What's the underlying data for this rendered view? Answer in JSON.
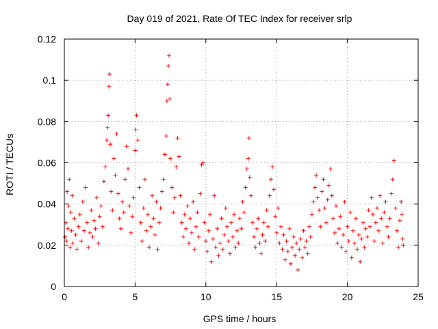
{
  "chart_data": {
    "type": "scatter",
    "title": "Day 019 of 2021, Rate Of TEC Index for receiver srlp",
    "xlabel": "GPS time / hours",
    "ylabel": "ROTI / TECUs",
    "xlim": [
      0,
      25
    ],
    "ylim": [
      0,
      0.12
    ],
    "x_ticks": [
      0,
      5,
      10,
      15,
      20,
      25
    ],
    "x_tick_labels": [
      "0",
      "5",
      "10",
      "15",
      "20",
      "25"
    ],
    "y_ticks": [
      0,
      0.02,
      0.04,
      0.06,
      0.08,
      0.1,
      0.12
    ],
    "y_tick_labels": [
      "0",
      "0.02",
      "0.04",
      "0.06",
      "0.08",
      "0.1",
      "0.12"
    ],
    "grid": true,
    "marker": "+",
    "series_color": "#ff0000",
    "series": [
      {
        "name": "ROTI",
        "points": [
          [
            0.05,
            0.024
          ],
          [
            0.1,
            0.031
          ],
          [
            0.15,
            0.022
          ],
          [
            0.2,
            0.046
          ],
          [
            0.25,
            0.028
          ],
          [
            0.3,
            0.039
          ],
          [
            0.35,
            0.052
          ],
          [
            0.4,
            0.019
          ],
          [
            0.45,
            0.036
          ],
          [
            0.5,
            0.027
          ],
          [
            0.55,
            0.044
          ],
          [
            0.6,
            0.021
          ],
          [
            0.7,
            0.033
          ],
          [
            0.8,
            0.025
          ],
          [
            0.9,
            0.018
          ],
          [
            1.0,
            0.029
          ],
          [
            1.1,
            0.035
          ],
          [
            1.2,
            0.022
          ],
          [
            1.3,
            0.041
          ],
          [
            1.4,
            0.027
          ],
          [
            1.5,
            0.048
          ],
          [
            1.6,
            0.031
          ],
          [
            1.7,
            0.019
          ],
          [
            1.8,
            0.026
          ],
          [
            1.9,
            0.037
          ],
          [
            2.0,
            0.024
          ],
          [
            2.1,
            0.032
          ],
          [
            2.2,
            0.028
          ],
          [
            2.3,
            0.043
          ],
          [
            2.4,
            0.021
          ],
          [
            2.5,
            0.034
          ],
          [
            2.6,
            0.039
          ],
          [
            2.7,
            0.029
          ],
          [
            2.8,
            0.051
          ],
          [
            2.9,
            0.058
          ],
          [
            3.0,
            0.071
          ],
          [
            3.05,
            0.077
          ],
          [
            3.1,
            0.083
          ],
          [
            3.15,
            0.097
          ],
          [
            3.2,
            0.103
          ],
          [
            3.25,
            0.069
          ],
          [
            3.3,
            0.046
          ],
          [
            3.4,
            0.037
          ],
          [
            3.5,
            0.062
          ],
          [
            3.6,
            0.054
          ],
          [
            3.7,
            0.074
          ],
          [
            3.8,
            0.045
          ],
          [
            3.9,
            0.033
          ],
          [
            4.0,
            0.028
          ],
          [
            4.1,
            0.041
          ],
          [
            4.2,
            0.036
          ],
          [
            4.3,
            0.052
          ],
          [
            4.4,
            0.068
          ],
          [
            4.5,
            0.057
          ],
          [
            4.6,
            0.039
          ],
          [
            4.7,
            0.026
          ],
          [
            4.8,
            0.034
          ],
          [
            4.9,
            0.043
          ],
          [
            5.0,
            0.066
          ],
          [
            5.05,
            0.076
          ],
          [
            5.1,
            0.083
          ],
          [
            5.2,
            0.071
          ],
          [
            5.3,
            0.048
          ],
          [
            5.4,
            0.031
          ],
          [
            5.5,
            0.022
          ],
          [
            5.6,
            0.038
          ],
          [
            5.7,
            0.052
          ],
          [
            5.8,
            0.027
          ],
          [
            5.9,
            0.035
          ],
          [
            6.0,
            0.019
          ],
          [
            6.1,
            0.029
          ],
          [
            6.2,
            0.044
          ],
          [
            6.3,
            0.033
          ],
          [
            6.4,
            0.025
          ],
          [
            6.5,
            0.041
          ],
          [
            6.6,
            0.018
          ],
          [
            6.7,
            0.031
          ],
          [
            6.8,
            0.038
          ],
          [
            6.9,
            0.046
          ],
          [
            7.0,
            0.052
          ],
          [
            7.1,
            0.064
          ],
          [
            7.2,
            0.073
          ],
          [
            7.25,
            0.09
          ],
          [
            7.3,
            0.098
          ],
          [
            7.35,
            0.107
          ],
          [
            7.4,
            0.112
          ],
          [
            7.45,
            0.091
          ],
          [
            7.5,
            0.062
          ],
          [
            7.6,
            0.048
          ],
          [
            7.7,
            0.036
          ],
          [
            7.8,
            0.043
          ],
          [
            7.9,
            0.058
          ],
          [
            8.0,
            0.072
          ],
          [
            8.1,
            0.063
          ],
          [
            8.2,
            0.044
          ],
          [
            8.3,
            0.031
          ],
          [
            8.4,
            0.024
          ],
          [
            8.5,
            0.035
          ],
          [
            8.6,
            0.028
          ],
          [
            8.7,
            0.039
          ],
          [
            8.8,
            0.021
          ],
          [
            8.9,
            0.033
          ],
          [
            9.0,
            0.026
          ],
          [
            9.1,
            0.041
          ],
          [
            9.2,
            0.018
          ],
          [
            9.3,
            0.029
          ],
          [
            9.4,
            0.036
          ],
          [
            9.5,
            0.024
          ],
          [
            9.6,
            0.045
          ],
          [
            9.7,
            0.059
          ],
          [
            9.8,
            0.06
          ],
          [
            9.9,
            0.031
          ],
          [
            10.0,
            0.022
          ],
          [
            10.1,
            0.017
          ],
          [
            10.2,
            0.027
          ],
          [
            10.3,
            0.035
          ],
          [
            10.4,
            0.012
          ],
          [
            10.5,
            0.023
          ],
          [
            10.6,
            0.044
          ],
          [
            10.7,
            0.019
          ],
          [
            10.8,
            0.028
          ],
          [
            10.9,
            0.015
          ],
          [
            11.0,
            0.021
          ],
          [
            11.1,
            0.033
          ],
          [
            11.2,
            0.018
          ],
          [
            11.3,
            0.025
          ],
          [
            11.4,
            0.038
          ],
          [
            11.5,
            0.029
          ],
          [
            11.6,
            0.022
          ],
          [
            11.7,
            0.016
          ],
          [
            11.8,
            0.031
          ],
          [
            11.9,
            0.024
          ],
          [
            12.0,
            0.035
          ],
          [
            12.1,
            0.019
          ],
          [
            12.2,
            0.027
          ],
          [
            12.3,
            0.021
          ],
          [
            12.4,
            0.033
          ],
          [
            12.5,
            0.028
          ],
          [
            12.6,
            0.041
          ],
          [
            12.7,
            0.036
          ],
          [
            12.8,
            0.048
          ],
          [
            12.9,
            0.057
          ],
          [
            13.0,
            0.062
          ],
          [
            13.05,
            0.072
          ],
          [
            13.1,
            0.053
          ],
          [
            13.2,
            0.044
          ],
          [
            13.3,
            0.031
          ],
          [
            13.4,
            0.024
          ],
          [
            13.5,
            0.019
          ],
          [
            13.6,
            0.028
          ],
          [
            13.7,
            0.033
          ],
          [
            13.8,
            0.021
          ],
          [
            13.9,
            0.016
          ],
          [
            14.0,
            0.025
          ],
          [
            14.1,
            0.031
          ],
          [
            14.2,
            0.022
          ],
          [
            14.3,
            0.037
          ],
          [
            14.4,
            0.029
          ],
          [
            14.5,
            0.044
          ],
          [
            14.6,
            0.052
          ],
          [
            14.7,
            0.058
          ],
          [
            14.8,
            0.047
          ],
          [
            14.9,
            0.034
          ],
          [
            15.0,
            0.026
          ],
          [
            15.1,
            0.038
          ],
          [
            15.2,
            0.021
          ],
          [
            15.3,
            0.029
          ],
          [
            15.4,
            0.018
          ],
          [
            15.5,
            0.025
          ],
          [
            15.6,
            0.013
          ],
          [
            15.7,
            0.022
          ],
          [
            15.8,
            0.017
          ],
          [
            15.9,
            0.028
          ],
          [
            16.0,
            0.011
          ],
          [
            16.1,
            0.019
          ],
          [
            16.2,
            0.024
          ],
          [
            16.3,
            0.015
          ],
          [
            16.4,
            0.021
          ],
          [
            16.5,
            0.008
          ],
          [
            16.6,
            0.018
          ],
          [
            16.7,
            0.023
          ],
          [
            16.8,
            0.014
          ],
          [
            16.9,
            0.027
          ],
          [
            17.0,
            0.019
          ],
          [
            17.1,
            0.022
          ],
          [
            17.2,
            0.016
          ],
          [
            17.3,
            0.029
          ],
          [
            17.4,
            0.024
          ],
          [
            17.5,
            0.035
          ],
          [
            17.6,
            0.041
          ],
          [
            17.7,
            0.048
          ],
          [
            17.8,
            0.054
          ],
          [
            17.9,
            0.043
          ],
          [
            18.0,
            0.037
          ],
          [
            18.1,
            0.029
          ],
          [
            18.2,
            0.046
          ],
          [
            18.3,
            0.052
          ],
          [
            18.4,
            0.038
          ],
          [
            18.5,
            0.031
          ],
          [
            18.6,
            0.042
          ],
          [
            18.7,
            0.049
          ],
          [
            18.8,
            0.057
          ],
          [
            18.9,
            0.044
          ],
          [
            19.0,
            0.033
          ],
          [
            19.1,
            0.026
          ],
          [
            19.2,
            0.039
          ],
          [
            19.3,
            0.021
          ],
          [
            19.4,
            0.028
          ],
          [
            19.5,
            0.034
          ],
          [
            19.6,
            0.019
          ],
          [
            19.7,
            0.025
          ],
          [
            19.8,
            0.041
          ],
          [
            19.9,
            0.017
          ],
          [
            20.0,
            0.029
          ],
          [
            20.1,
            0.022
          ],
          [
            20.2,
            0.036
          ],
          [
            20.3,
            0.014
          ],
          [
            20.4,
            0.027
          ],
          [
            20.5,
            0.021
          ],
          [
            20.6,
            0.033
          ],
          [
            20.7,
            0.018
          ],
          [
            20.8,
            0.025
          ],
          [
            20.9,
            0.012
          ],
          [
            21.0,
            0.023
          ],
          [
            21.1,
            0.031
          ],
          [
            21.2,
            0.019
          ],
          [
            21.3,
            0.028
          ],
          [
            21.4,
            0.024
          ],
          [
            21.5,
            0.037
          ],
          [
            21.6,
            0.029
          ],
          [
            21.7,
            0.043
          ],
          [
            21.8,
            0.035
          ],
          [
            21.9,
            0.022
          ],
          [
            22.0,
            0.031
          ],
          [
            22.1,
            0.038
          ],
          [
            22.2,
            0.027
          ],
          [
            22.3,
            0.044
          ],
          [
            22.4,
            0.033
          ],
          [
            22.5,
            0.021
          ],
          [
            22.6,
            0.036
          ],
          [
            22.7,
            0.041
          ],
          [
            22.8,
            0.029
          ],
          [
            22.9,
            0.024
          ],
          [
            23.0,
            0.033
          ],
          [
            23.1,
            0.045
          ],
          [
            23.2,
            0.052
          ],
          [
            23.3,
            0.061
          ],
          [
            23.4,
            0.038
          ],
          [
            23.5,
            0.027
          ],
          [
            23.6,
            0.019
          ],
          [
            23.7,
            0.032
          ],
          [
            23.8,
            0.041
          ],
          [
            23.85,
            0.035
          ],
          [
            23.9,
            0.023
          ],
          [
            23.95,
            0.02
          ]
        ]
      }
    ]
  }
}
